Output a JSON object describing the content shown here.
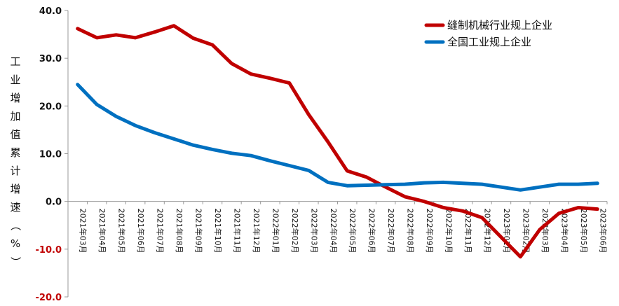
{
  "chart_data": {
    "type": "line",
    "title": "",
    "ylabel": "工业增加值累计增速（%）",
    "xlabel": "",
    "ylim": [
      -20,
      40
    ],
    "yticks": [
      40,
      30,
      20,
      10,
      0,
      -10,
      -20
    ],
    "ytick_labels": [
      "40.0",
      "30.0",
      "20.0",
      "10.0",
      "0.0",
      "-10.0",
      "-20.0"
    ],
    "categories": [
      "2021年03月",
      "2021年04月",
      "2021年05月",
      "2021年06月",
      "2021年07月",
      "2021年08月",
      "2021年09月",
      "2021年10月",
      "2021年11月",
      "2021年12月",
      "2022年01月",
      "2022年02月",
      "2022年03月",
      "2022年04月",
      "2022年05月",
      "2022年06月",
      "2022年07月",
      "2022年08月",
      "2022年09月",
      "2022年10月",
      "2022年11月",
      "2022年12月",
      "2023年01月",
      "2023年02月",
      "2023年03月",
      "2023年04月",
      "2023年05月",
      "2023年06月"
    ],
    "series": [
      {
        "name": "缝制机械行业规上企业",
        "color": "#C00000",
        "values": [
          36.2,
          34.3,
          34.9,
          34.3,
          35.5,
          36.8,
          34.2,
          32.8,
          28.9,
          26.7,
          25.8,
          24.8,
          18.2,
          12.5,
          6.4,
          5.1,
          3.0,
          1.0,
          0.0,
          -1.3,
          -2.0,
          -3.4,
          -7.5,
          -11.6,
          -5.9,
          -2.5,
          -1.3,
          -1.6
        ]
      },
      {
        "name": "全国工业规上企业",
        "color": "#0070C0",
        "values": [
          24.5,
          20.3,
          17.8,
          15.9,
          14.4,
          13.1,
          11.8,
          10.9,
          10.1,
          9.6,
          8.5,
          7.5,
          6.5,
          4.0,
          3.3,
          3.4,
          3.5,
          3.6,
          3.9,
          4.0,
          3.8,
          3.6,
          3.0,
          2.4,
          3.0,
          3.6,
          3.6,
          3.8
        ]
      }
    ],
    "legend_position": "top-right",
    "label_colors": {
      "positive": "#111111",
      "negative": "#C00000"
    }
  }
}
